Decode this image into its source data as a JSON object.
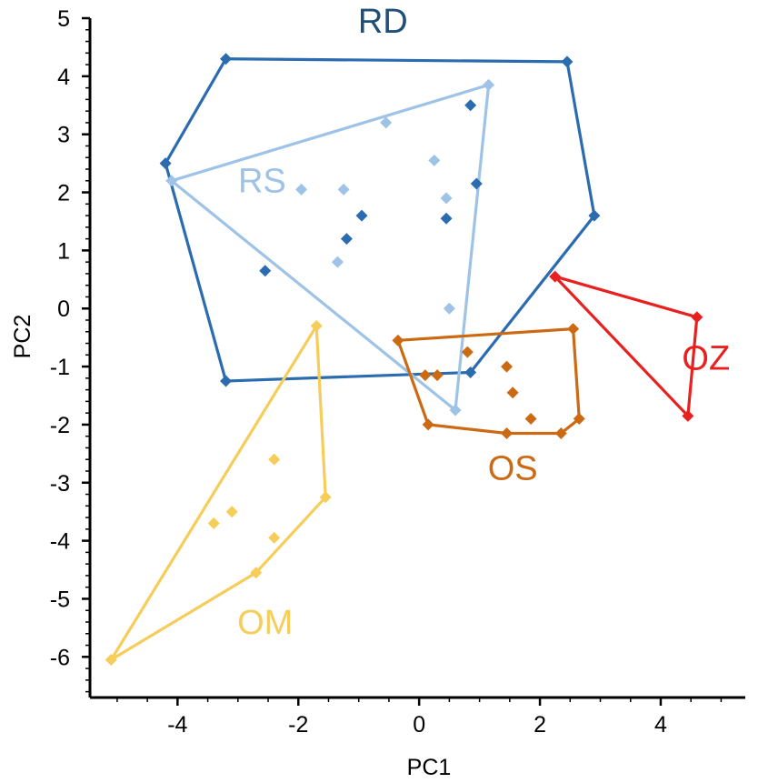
{
  "chart_data": {
    "type": "scatter",
    "title": "",
    "xlabel": "PC1",
    "ylabel": "PC2",
    "xlim": [
      -5.45,
      5.4
    ],
    "ylim": [
      -6.7,
      5.0
    ],
    "xticks": [
      -4,
      -2,
      0,
      2,
      4
    ],
    "yticks": [
      5,
      4,
      3,
      2,
      1,
      0,
      -1,
      -2,
      -3,
      -4,
      -5,
      -6
    ],
    "grid": false,
    "legend": "none",
    "series": [
      {
        "name": "RD",
        "color": "#2b6cb0",
        "label_color": "#1f4e79",
        "label_at": [
          -0.6,
          4.75
        ],
        "hull": [
          [
            -3.2,
            4.3
          ],
          [
            2.45,
            4.25
          ],
          [
            2.9,
            1.6
          ],
          [
            0.85,
            -1.1
          ],
          [
            -3.2,
            -1.25
          ],
          [
            -4.2,
            2.5
          ]
        ],
        "points": [
          [
            -3.2,
            4.3
          ],
          [
            2.45,
            4.25
          ],
          [
            2.9,
            1.6
          ],
          [
            0.85,
            -1.1
          ],
          [
            -3.2,
            -1.25
          ],
          [
            -4.2,
            2.5
          ],
          [
            0.85,
            3.5
          ],
          [
            0.95,
            2.15
          ],
          [
            0.45,
            1.55
          ],
          [
            -0.95,
            1.6
          ],
          [
            -1.2,
            1.2
          ],
          [
            -2.55,
            0.65
          ]
        ]
      },
      {
        "name": "RS",
        "color": "#9ec3e6",
        "label_color": "#9ec3e6",
        "label_at": [
          -2.6,
          2.0
        ],
        "hull": [
          [
            -4.1,
            2.2
          ],
          [
            1.15,
            3.85
          ],
          [
            0.6,
            -1.75
          ]
        ],
        "points": [
          [
            -4.1,
            2.2
          ],
          [
            1.15,
            3.85
          ],
          [
            0.6,
            -1.75
          ],
          [
            -0.55,
            3.2
          ],
          [
            0.25,
            2.55
          ],
          [
            -1.95,
            2.05
          ],
          [
            -1.25,
            2.05
          ],
          [
            0.45,
            1.9
          ],
          [
            -1.35,
            0.8
          ],
          [
            0.5,
            0.0
          ]
        ]
      },
      {
        "name": "OS",
        "color": "#cc6a14",
        "label_color": "#cc6a14",
        "label_at": [
          1.55,
          -2.95
        ],
        "hull": [
          [
            -0.35,
            -0.55
          ],
          [
            2.55,
            -0.35
          ],
          [
            2.65,
            -1.9
          ],
          [
            2.35,
            -2.15
          ],
          [
            1.45,
            -2.15
          ],
          [
            0.15,
            -2.0
          ]
        ],
        "points": [
          [
            -0.35,
            -0.55
          ],
          [
            2.55,
            -0.35
          ],
          [
            2.65,
            -1.9
          ],
          [
            2.35,
            -2.15
          ],
          [
            1.45,
            -2.15
          ],
          [
            0.15,
            -2.0
          ],
          [
            0.8,
            -0.75
          ],
          [
            1.45,
            -1.0
          ],
          [
            0.1,
            -1.15
          ],
          [
            0.3,
            -1.15
          ],
          [
            1.55,
            -1.45
          ],
          [
            1.85,
            -1.9
          ]
        ]
      },
      {
        "name": "OZ",
        "color": "#e8201f",
        "label_color": "#e8201f",
        "label_at": [
          4.75,
          -1.05
        ],
        "hull": [
          [
            2.25,
            0.55
          ],
          [
            4.6,
            -0.15
          ],
          [
            4.45,
            -1.85
          ]
        ],
        "points": [
          [
            2.25,
            0.55
          ],
          [
            4.6,
            -0.15
          ],
          [
            4.45,
            -1.85
          ]
        ]
      },
      {
        "name": "OM",
        "color": "#f7cd5a",
        "label_color": "#f7cd5a",
        "label_at": [
          -2.55,
          -5.6
        ],
        "hull": [
          [
            -1.7,
            -0.3
          ],
          [
            -1.55,
            -3.25
          ],
          [
            -2.7,
            -4.55
          ],
          [
            -5.1,
            -6.05
          ]
        ],
        "points": [
          [
            -1.7,
            -0.3
          ],
          [
            -1.55,
            -3.25
          ],
          [
            -2.7,
            -4.55
          ],
          [
            -5.1,
            -6.05
          ],
          [
            -2.4,
            -2.6
          ],
          [
            -3.1,
            -3.5
          ],
          [
            -3.4,
            -3.7
          ],
          [
            -2.4,
            -3.95
          ]
        ]
      }
    ]
  }
}
